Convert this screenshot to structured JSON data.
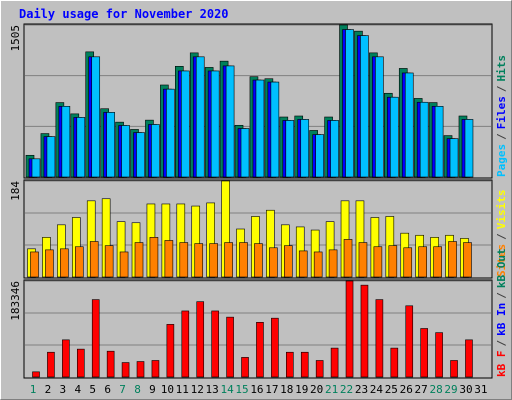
{
  "title": "Daily usage for November 2020",
  "separator": "/",
  "weekends": [
    1,
    7,
    8,
    14,
    15,
    21,
    22,
    28,
    29
  ],
  "weekend_color": "#00805c",
  "grid_divisions": 3,
  "chart_data": [
    {
      "type": "bar",
      "categories": [
        "1",
        "2",
        "3",
        "4",
        "5",
        "6",
        "7",
        "8",
        "9",
        "10",
        "11",
        "12",
        "13",
        "14",
        "15",
        "16",
        "17",
        "18",
        "19",
        "20",
        "21",
        "22",
        "23",
        "24",
        "25",
        "26",
        "27",
        "28",
        "29",
        "30",
        "31"
      ],
      "ylim": [
        0,
        1505
      ],
      "yticks": [
        1505
      ],
      "series": [
        {
          "name": "Hits",
          "color": "#00805c",
          "values": [
            215,
            430,
            737,
            625,
            1239,
            676,
            543,
            471,
            563,
            911,
            1096,
            1229,
            1085,
            1147,
            512,
            993,
            973,
            594,
            604,
            461,
            594,
            1505,
            1444,
            1229,
            829,
            1075,
            778,
            737,
            410,
            604,
            null
          ]
        },
        {
          "name": "Files",
          "color": "#0000ff",
          "values": [
            180,
            400,
            700,
            590,
            1190,
            640,
            510,
            440,
            520,
            870,
            1050,
            1190,
            1050,
            1100,
            480,
            960,
            940,
            560,
            570,
            420,
            560,
            1460,
            1400,
            1190,
            790,
            1030,
            740,
            700,
            380,
            570,
            null
          ]
        },
        {
          "name": "Pages",
          "color": "#00c0ff",
          "values": [
            180,
            400,
            700,
            590,
            1190,
            640,
            510,
            440,
            520,
            870,
            1050,
            1190,
            1050,
            1100,
            480,
            960,
            940,
            560,
            570,
            420,
            560,
            1460,
            1400,
            1190,
            790,
            1030,
            740,
            700,
            380,
            570,
            null
          ]
        }
      ]
    },
    {
      "type": "bar",
      "ylim": [
        0,
        184
      ],
      "yticks": [
        184
      ],
      "series": [
        {
          "name": "Visits",
          "color": "#ffff00",
          "values": [
            54,
            76,
            100,
            114,
            146,
            150,
            106,
            104,
            140,
            140,
            140,
            136,
            142,
            184,
            92,
            116,
            128,
            100,
            96,
            90,
            106,
            146,
            146,
            114,
            116,
            84,
            80,
            76,
            80,
            74,
            null
          ]
        },
        {
          "name": "Sites",
          "color": "#ff8000",
          "values": [
            48,
            52,
            54,
            58,
            68,
            60,
            48,
            66,
            76,
            70,
            66,
            64,
            64,
            66,
            66,
            64,
            56,
            60,
            50,
            48,
            52,
            72,
            66,
            58,
            60,
            56,
            58,
            58,
            68,
            66,
            null
          ]
        }
      ]
    },
    {
      "type": "bar",
      "ylim": [
        0,
        183346
      ],
      "yticks": [
        183346
      ],
      "series": [
        {
          "name": "kB Out",
          "color": "#00805c",
          "values": [
            0,
            0,
            0,
            0,
            0,
            0,
            0,
            0,
            0,
            0,
            0,
            0,
            0,
            0,
            0,
            0,
            0,
            0,
            0,
            0,
            0,
            0,
            0,
            0,
            0,
            0,
            0,
            0,
            0,
            0,
            null
          ]
        },
        {
          "name": "kB In",
          "color": "#0000ff",
          "values": [
            0,
            0,
            0,
            0,
            0,
            0,
            0,
            0,
            0,
            0,
            0,
            0,
            0,
            0,
            0,
            0,
            0,
            0,
            0,
            0,
            0,
            0,
            0,
            0,
            0,
            0,
            0,
            0,
            0,
            0,
            null
          ]
        },
        {
          "name": "kB F",
          "color": "#ff0000",
          "values": [
            9855,
            47304,
            70956,
            53217,
            147825,
            49275,
            27594,
            29565,
            31536,
            100521,
            126144,
            143883,
            126144,
            114318,
            37449,
            104463,
            112347,
            47304,
            47304,
            31536,
            55188,
            183346,
            175419,
            147825,
            55188,
            135999,
            92637,
            84753,
            31536,
            70956,
            null
          ]
        }
      ]
    }
  ]
}
